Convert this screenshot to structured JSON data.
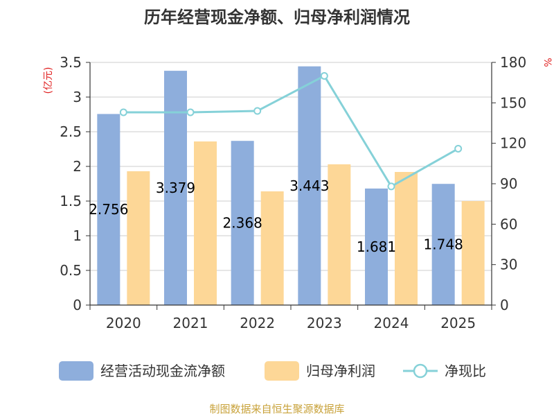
{
  "chart_data": {
    "type": "bar",
    "title": "历年经营现金净额、归母净利润情况",
    "categories": [
      "2020",
      "2021",
      "2022",
      "2023",
      "2024",
      "2025"
    ],
    "series": [
      {
        "name": "经营活动现金流净额",
        "axis": "left",
        "type": "bar",
        "color": "#8eaedc",
        "values": [
          2.756,
          3.379,
          2.368,
          3.443,
          1.681,
          1.748
        ],
        "labels": [
          "2.756",
          "3.379",
          "2.368",
          "3.443",
          "1.681",
          "1.748"
        ]
      },
      {
        "name": "归母净利润",
        "axis": "left",
        "type": "bar",
        "color": "#fdd797",
        "values": [
          1.93,
          2.36,
          1.64,
          2.03,
          1.92,
          1.5
        ]
      },
      {
        "name": "净现比",
        "axis": "right",
        "type": "line",
        "color": "#85d1d8",
        "values": [
          143,
          143,
          144,
          170,
          88,
          116
        ]
      }
    ],
    "left_axis": {
      "unit": "(亿元)",
      "ylim": [
        0,
        3.5
      ],
      "ticks": [
        "0",
        "0.5",
        "1",
        "1.5",
        "2",
        "2.5",
        "3",
        "3.5"
      ]
    },
    "right_axis": {
      "unit": "%",
      "ylim": [
        0,
        180
      ],
      "ticks": [
        "0",
        "30",
        "60",
        "90",
        "120",
        "150",
        "180"
      ]
    },
    "grid": true,
    "legend_position": "bottom"
  },
  "source": "制图数据来自恒生聚源数据库"
}
